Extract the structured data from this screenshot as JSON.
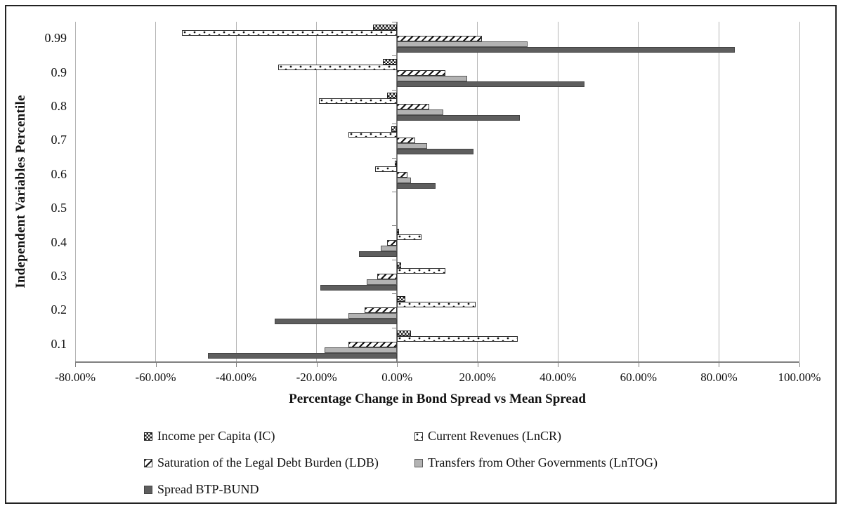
{
  "figure": {
    "y_axis": {
      "title": "Independent Variables Percentile"
    },
    "x_axis": {
      "title": "Percentage Change in Bond Spread vs Mean Spread",
      "tick_labels": [
        "-80.00%",
        "-60.00%",
        "-40.00%",
        "-20.00%",
        "0.00%",
        "20.00%",
        "40.00%",
        "60.00%",
        "80.00%",
        "100.00%"
      ]
    }
  },
  "chart_data": {
    "type": "bar",
    "orientation": "horizontal",
    "title": "",
    "xlabel": "Percentage Change in Bond Spread vs Mean Spread",
    "ylabel": "Independent Variables Percentile",
    "xlim": [
      -80,
      100
    ],
    "x_tick_step": 20,
    "grid": "vertical",
    "legend_position": "bottom",
    "categories": [
      "0.99",
      "0.9",
      "0.8",
      "0.7",
      "0.6",
      "0.5",
      "0.4",
      "0.3",
      "0.2",
      "0.1"
    ],
    "values_unit": "percent",
    "series": [
      {
        "name": "Income per Capita (IC)",
        "pattern": "checker",
        "values": [
          -6,
          -3.5,
          -2.5,
          -1.5,
          -0.5,
          0,
          0.5,
          1,
          2,
          3.5
        ]
      },
      {
        "name": "Current Revenues (LnCR)",
        "pattern": "dots",
        "values": [
          -53.5,
          -29.5,
          -19.5,
          -12,
          -5.5,
          0,
          6,
          12,
          19.5,
          30
        ]
      },
      {
        "name": "Saturation of the Legal Debt Burden (LDB)",
        "pattern": "diag",
        "values": [
          21,
          12,
          8,
          4.5,
          2.5,
          0,
          -2.5,
          -5,
          -8,
          -12
        ]
      },
      {
        "name": "Transfers from Other Governments (LnTOG)",
        "pattern": "light",
        "values": [
          32.5,
          17.5,
          11.5,
          7.5,
          3.5,
          0,
          -4,
          -7.5,
          -12,
          -18
        ]
      },
      {
        "name": "Spread BTP-BUND",
        "pattern": "dark",
        "values": [
          84,
          46.5,
          30.5,
          19,
          9.5,
          0,
          -9.5,
          -19,
          -30.5,
          -47
        ]
      }
    ]
  },
  "colors": {
    "bar_light_gray": "#b3b3b3",
    "bar_dark_gray": "#5e5e5e",
    "gridline": "#b4b4b4",
    "axis_line": "#7f7f7f",
    "frame_border": "#222222",
    "text": "#111111"
  }
}
